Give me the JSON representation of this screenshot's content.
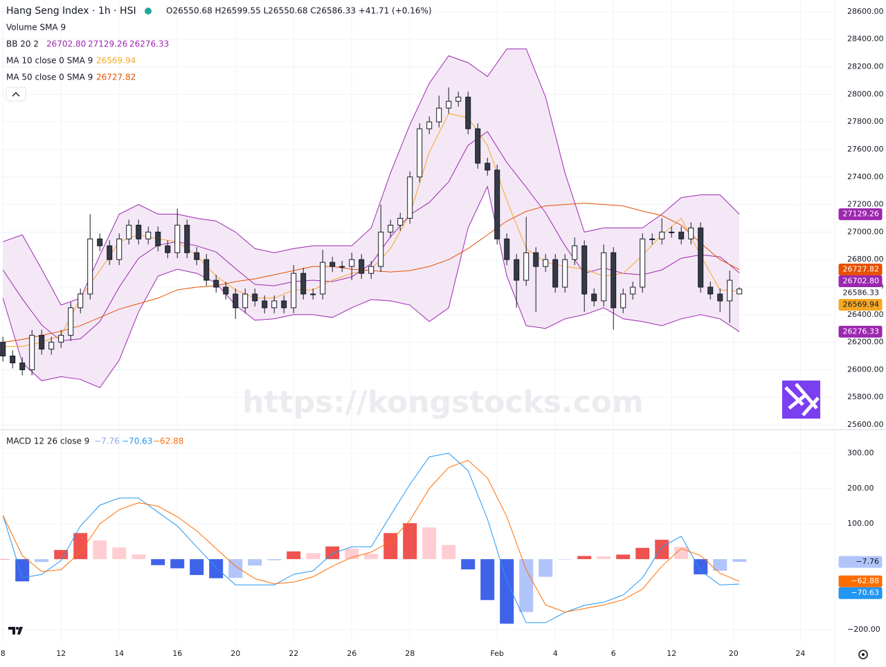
{
  "chart_data": [
    {
      "type": "candlestick",
      "title": "Hang Seng Index · 1h · HSI",
      "ohlc_label": "O26550.68 H26599.55 L26550.68 C26586.33 +41.71 (+0.16%)",
      "legend_extra": "Volume SMA 9",
      "watermark": "https://kongstocks.com",
      "up_color": "#ffffff",
      "down_color": "#363a45",
      "wick_color": "#131722",
      "grid": true,
      "xlim": [
        -0.3,
        85.77
      ],
      "xticks": [
        {
          "value": 0,
          "label": "8"
        },
        {
          "value": 6,
          "label": "12"
        },
        {
          "value": 12,
          "label": "14"
        },
        {
          "value": 18,
          "label": "16"
        },
        {
          "value": 24,
          "label": "20"
        },
        {
          "value": 30,
          "label": "22"
        },
        {
          "value": 36,
          "label": "26"
        },
        {
          "value": 42,
          "label": "28"
        },
        {
          "value": 51,
          "label": "Feb"
        },
        {
          "value": 57,
          "label": "4"
        },
        {
          "value": 63,
          "label": "6"
        },
        {
          "value": 69,
          "label": "12"
        },
        {
          "value": 75.4,
          "label": "20"
        },
        {
          "value": 82.3,
          "label": "24"
        }
      ],
      "ylim": [
        25570,
        28685
      ],
      "yticks": [
        {
          "value": 25600,
          "label": "25600.00"
        },
        {
          "value": 25800,
          "label": "25800.00"
        },
        {
          "value": 26000,
          "label": "26000.00"
        },
        {
          "value": 26200,
          "label": "26200.00"
        },
        {
          "value": 26400,
          "label": "26400.00"
        },
        {
          "value": 26600,
          "label": "26600.00"
        },
        {
          "value": 26800,
          "label": "26800.00"
        },
        {
          "value": 27000,
          "label": "27000.00"
        },
        {
          "value": 27200,
          "label": "27200.00"
        },
        {
          "value": 27400,
          "label": "27400.00"
        },
        {
          "value": 27600,
          "label": "27600.00"
        },
        {
          "value": 27800,
          "label": "27800.00"
        },
        {
          "value": 28000,
          "label": "28000.00"
        },
        {
          "value": 28200,
          "label": "28200.00"
        },
        {
          "value": 28400,
          "label": "28400.00"
        },
        {
          "value": 28600,
          "label": "28600.00"
        }
      ],
      "x": [
        0,
        1,
        2,
        3,
        4,
        5,
        6,
        7,
        8,
        9,
        10,
        11,
        12,
        13,
        14,
        15,
        16,
        17,
        18,
        19,
        20,
        21,
        22,
        23,
        24,
        25,
        26,
        27,
        28,
        29,
        30,
        31,
        32,
        33,
        34,
        35,
        36,
        37,
        38,
        39,
        40,
        41,
        42,
        43,
        44,
        45,
        46,
        47,
        48,
        49,
        50,
        51,
        52,
        53,
        54,
        55,
        56,
        57,
        58,
        59,
        60,
        61,
        62,
        63,
        64,
        65,
        66,
        67,
        68,
        69,
        70,
        71,
        72,
        73,
        74,
        75,
        76
      ],
      "open": [
        26200,
        26100,
        26050,
        26000,
        26250,
        26150,
        26200,
        26250,
        26450,
        26550,
        26950,
        26900,
        26800,
        26950,
        27050,
        26950,
        27000,
        26900,
        26850,
        27050,
        26850,
        26800,
        26650,
        26600,
        26550,
        26450,
        26550,
        26500,
        26450,
        26500,
        26450,
        26700,
        26550,
        26550,
        26780,
        26750,
        26750,
        26800,
        26700,
        26750,
        27000,
        27050,
        27100,
        27400,
        27750,
        27800,
        27900,
        27950,
        27980,
        27750,
        27500,
        27450,
        26950,
        26800,
        26650,
        26850,
        26750,
        26800,
        26600,
        26800,
        26900,
        26550,
        26500,
        26850,
        26450,
        26550,
        26600,
        26950,
        26950,
        27000,
        27000,
        26950,
        27030,
        26600,
        26550,
        26500,
        26550.68
      ],
      "high": [
        26240,
        26140,
        26090,
        26290,
        26290,
        26240,
        26290,
        26490,
        26590,
        27130,
        26990,
        26940,
        26990,
        27090,
        27090,
        27040,
        27040,
        26940,
        27170,
        27090,
        26890,
        26840,
        26690,
        26640,
        26590,
        26590,
        26590,
        26540,
        26540,
        26540,
        26760,
        26740,
        26590,
        26870,
        26820,
        26790,
        26850,
        26840,
        26790,
        27200,
        27090,
        27140,
        27440,
        27790,
        27840,
        27990,
        28050,
        28020,
        28020,
        27790,
        27540,
        27490,
        26990,
        26840,
        27110,
        26890,
        26840,
        26840,
        26840,
        26960,
        26940,
        26590,
        26910,
        26890,
        26590,
        26640,
        26990,
        26990,
        27100,
        27040,
        27040,
        27070,
        27070,
        26640,
        26590,
        26720,
        26599.55
      ],
      "low": [
        26060,
        26010,
        25960,
        25960,
        26110,
        26110,
        26160,
        26210,
        26410,
        26510,
        26860,
        26760,
        26760,
        26910,
        26910,
        26910,
        26860,
        26810,
        26810,
        26810,
        26760,
        26610,
        26560,
        26510,
        26370,
        26410,
        26460,
        26410,
        26410,
        26410,
        26410,
        26510,
        26510,
        26510,
        26710,
        26710,
        26650,
        26660,
        26660,
        26710,
        26960,
        27010,
        27060,
        27360,
        27710,
        27760,
        27860,
        27910,
        27710,
        27460,
        27410,
        26910,
        26760,
        26450,
        26610,
        26420,
        26710,
        26560,
        26560,
        26760,
        26420,
        26460,
        26460,
        26290,
        26410,
        26510,
        26560,
        26910,
        26910,
        26960,
        26910,
        26910,
        26560,
        26510,
        26420,
        26340,
        26550.68
      ],
      "close": [
        26100,
        26050,
        26000,
        26250,
        26150,
        26200,
        26250,
        26450,
        26550,
        26950,
        26900,
        26800,
        26950,
        27050,
        26950,
        27000,
        26900,
        26850,
        27050,
        26850,
        26800,
        26650,
        26600,
        26550,
        26450,
        26550,
        26500,
        26450,
        26500,
        26450,
        26700,
        26550,
        26550,
        26780,
        26750,
        26750,
        26800,
        26700,
        26750,
        27000,
        27050,
        27100,
        27400,
        27750,
        27800,
        27900,
        27950,
        27980,
        27750,
        27500,
        27450,
        26950,
        26800,
        26650,
        26850,
        26750,
        26800,
        26600,
        26800,
        26900,
        26550,
        26500,
        26850,
        26450,
        26550,
        26600,
        26950,
        26950,
        27000,
        27000,
        26950,
        27030,
        26600,
        26550,
        26500,
        26650,
        26586.33
      ],
      "series": [
        {
          "name": "BB 20 2",
          "color": "#9c27b0",
          "fill": "#f3e5f5",
          "x": [
            0,
            2,
            4,
            6,
            8,
            10,
            12,
            14,
            16,
            18,
            20,
            22,
            24,
            26,
            28,
            30,
            32,
            34,
            36,
            38,
            40,
            42,
            44,
            46,
            48,
            50,
            52,
            54,
            56,
            58,
            60,
            62,
            64,
            66,
            68,
            70,
            72,
            74,
            76
          ],
          "middle": [
            26725,
            26515,
            26325,
            26210,
            26225,
            26350,
            26600,
            26810,
            26905,
            26930,
            26900,
            26855,
            26735,
            26620,
            26610,
            26640,
            26650,
            26640,
            26675,
            26770,
            26965,
            27125,
            27215,
            27365,
            27630,
            27730,
            27505,
            27325,
            27140,
            26900,
            26700,
            26740,
            26700,
            26690,
            26725,
            26810,
            26835,
            26820,
            26702.8
          ],
          "upper": [
            26930,
            26980,
            26730,
            26470,
            26520,
            26830,
            27130,
            27200,
            27130,
            27130,
            27100,
            27080,
            27000,
            26880,
            26850,
            26880,
            26900,
            26900,
            26900,
            27030,
            27430,
            27780,
            28080,
            28280,
            28230,
            28130,
            28330,
            28330,
            27980,
            27430,
            27000,
            27030,
            27030,
            27030,
            27130,
            27250,
            27270,
            27270,
            27129.26
          ],
          "lower": [
            26520,
            26050,
            25920,
            25950,
            25930,
            25870,
            26070,
            26420,
            26680,
            26730,
            26700,
            26630,
            26470,
            26360,
            26370,
            26400,
            26400,
            26380,
            26450,
            26510,
            26500,
            26470,
            26350,
            26450,
            27030,
            27330,
            26680,
            26320,
            26300,
            26370,
            26400,
            26450,
            26370,
            26350,
            26320,
            26370,
            26400,
            26370,
            26276.33
          ],
          "value_labels": [
            "26702.80",
            "27129.26",
            "26276.33"
          ]
        },
        {
          "name": "MA 10 close 0 SMA 9",
          "color": "#f7a825",
          "x": [
            0,
            2,
            4,
            6,
            8,
            10,
            12,
            14,
            16,
            18,
            20,
            22,
            24,
            26,
            28,
            30,
            32,
            34,
            36,
            38,
            40,
            42,
            44,
            46,
            48,
            50,
            52,
            54,
            56,
            58,
            60,
            62,
            64,
            66,
            68,
            70,
            72,
            74,
            76
          ],
          "values": [
            26170,
            26170,
            26200,
            26250,
            26520,
            26720,
            26930,
            26980,
            26950,
            26930,
            26830,
            26680,
            26580,
            26520,
            26520,
            26580,
            26580,
            26650,
            26700,
            26730,
            26880,
            27130,
            27580,
            27860,
            27830,
            27630,
            27230,
            26880,
            26780,
            26750,
            26730,
            26680,
            26700,
            26830,
            26980,
            27100,
            26830,
            26580,
            26569.94
          ],
          "value_labels": [
            "26569.94"
          ]
        },
        {
          "name": "MA 50 close 0 SMA 9",
          "color": "#e65100",
          "x": [
            0,
            2,
            4,
            6,
            8,
            10,
            12,
            14,
            16,
            18,
            20,
            22,
            24,
            26,
            28,
            30,
            32,
            34,
            36,
            38,
            40,
            42,
            44,
            46,
            48,
            50,
            52,
            54,
            56,
            58,
            60,
            62,
            64,
            66,
            68,
            70,
            72,
            74,
            76
          ],
          "values": [
            26200,
            26220,
            26250,
            26280,
            26320,
            26380,
            26440,
            26480,
            26520,
            26580,
            26600,
            26610,
            26640,
            26660,
            26690,
            26720,
            26750,
            26750,
            26730,
            26720,
            26710,
            26720,
            26750,
            26800,
            26880,
            26980,
            27080,
            27150,
            27190,
            27200,
            27210,
            27200,
            27190,
            27152,
            27120,
            27050,
            26920,
            26800,
            26727.82
          ],
          "value_labels": [
            "26727.82"
          ]
        }
      ]
    },
    {
      "type": "macd",
      "title": "MACD 12 26 close 9",
      "grid": true,
      "ylim": [
        -239,
        365
      ],
      "yticks": [
        {
          "value": 300,
          "label": "300.00"
        },
        {
          "value": 200,
          "label": "200.00"
        },
        {
          "value": 100,
          "label": "100.00"
        },
        {
          "value": -200,
          "label": "−200.00"
        }
      ],
      "x": [
        0,
        2,
        4,
        6,
        8,
        10,
        12,
        14,
        16,
        18,
        20,
        22,
        24,
        26,
        28,
        30,
        32,
        34,
        36,
        38,
        40,
        42,
        44,
        46,
        48,
        50,
        52,
        54,
        56,
        58,
        60,
        62,
        64,
        66,
        68,
        70,
        72,
        74,
        76
      ],
      "histogram": {
        "values": [
          0,
          -63,
          -8,
          26,
          74,
          53,
          33,
          13,
          -17,
          -26,
          -45,
          -54,
          -53,
          -18,
          -3,
          22,
          17,
          36,
          30,
          15,
          74,
          102,
          90,
          40,
          -29,
          -116,
          -183,
          -150,
          -50,
          -1,
          9,
          8,
          13,
          32,
          55,
          35,
          -43,
          -33,
          -7.76
        ],
        "value_label": "−7.76",
        "label_color": "#8fa4e8",
        "colors": {
          "up_rising": "#ef5350",
          "up_falling": "#ffcdd2",
          "down_falling": "#3f63e8",
          "down_rising": "#b2c5fb"
        }
      },
      "series": [
        {
          "color": "#2196f3",
          "values": [
            124,
            -53,
            -43,
            -4,
            94,
            153,
            173,
            173,
            133,
            94,
            35,
            -24,
            -73,
            -73,
            -73,
            -43,
            -33,
            16,
            35,
            35,
            124,
            212,
            290,
            300,
            251,
            114,
            -63,
            -180,
            -180,
            -151,
            -131,
            -122,
            -102,
            -53,
            35,
            65,
            -33,
            -73,
            -70.63
          ],
          "value_label": "−70.63"
        },
        {
          "color": "#ff6d00",
          "values": [
            124,
            10,
            -35,
            -30,
            20,
            100,
            140,
            160,
            150,
            120,
            80,
            30,
            -20,
            -55,
            -70,
            -65,
            -50,
            -20,
            5,
            20,
            50,
            110,
            200,
            260,
            280,
            230,
            120,
            -30,
            -130,
            -150,
            -140,
            -130,
            -115,
            -85,
            -20,
            30,
            10,
            -40,
            -62.88
          ],
          "value_label": "−62.88"
        }
      ]
    }
  ]
}
